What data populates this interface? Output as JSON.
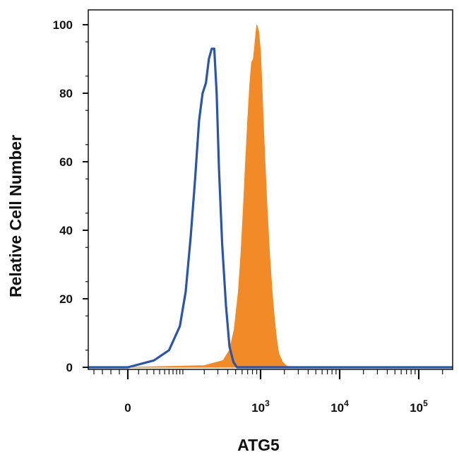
{
  "chart_data": {
    "type": "area",
    "title": "",
    "xlabel": "ATG5",
    "ylabel": "Relative Cell Number",
    "x_scale": "biexponential",
    "ylim": [
      0,
      105
    ],
    "grid": false,
    "x_ticks": [
      {
        "value": 0,
        "base": "0",
        "exp": ""
      },
      {
        "value": 1000,
        "base": "10",
        "exp": "3"
      },
      {
        "value": 10000,
        "base": "10",
        "exp": "4"
      },
      {
        "value": 100000,
        "base": "10",
        "exp": "5"
      }
    ],
    "y_ticks": [
      0,
      20,
      40,
      60,
      80,
      100
    ],
    "series": [
      {
        "style": "outline",
        "color": "#2a55a8",
        "x": [
          -50,
          0,
          30,
          60,
          90,
          110,
          130,
          150,
          170,
          190,
          210,
          230,
          250,
          270,
          290,
          310,
          340,
          380,
          420,
          470,
          520,
          600,
          700
        ],
        "y": [
          0,
          0,
          2,
          5,
          12,
          22,
          38,
          55,
          72,
          80,
          83,
          90,
          93,
          93,
          80,
          58,
          36,
          18,
          6,
          1.5,
          0,
          0,
          0
        ]
      },
      {
        "style": "filled",
        "color": "#f28a28",
        "x": [
          0,
          200,
          350,
          420,
          480,
          540,
          580,
          620,
          660,
          700,
          740,
          780,
          820,
          860,
          900,
          950,
          1000,
          1050,
          1100,
          1200,
          1300,
          1400,
          1500,
          1600,
          1700,
          1900,
          2100,
          2400,
          2800
        ],
        "y": [
          0,
          0.5,
          2,
          5,
          11,
          22,
          33,
          46,
          60,
          72,
          82,
          89,
          90,
          95,
          100,
          98,
          92,
          80,
          68,
          48,
          33,
          22,
          14,
          8,
          4,
          1.5,
          0.5,
          0,
          0
        ]
      }
    ]
  }
}
